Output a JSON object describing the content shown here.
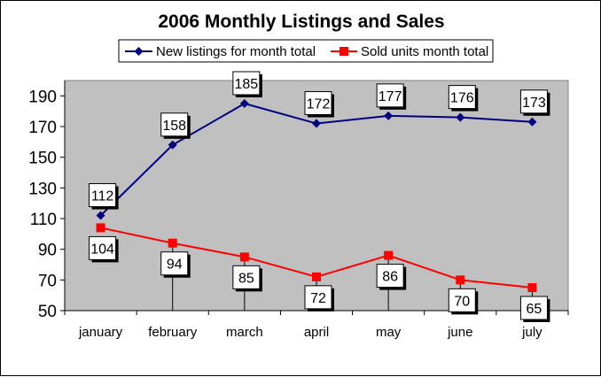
{
  "chart_data": {
    "type": "line",
    "title": "2006 Monthly Listings and Sales",
    "categories": [
      "january",
      "february",
      "march",
      "april",
      "may",
      "june",
      "july"
    ],
    "series": [
      {
        "name": "New listings for month total",
        "values": [
          112,
          158,
          185,
          172,
          177,
          176,
          173
        ],
        "color": "#000080",
        "marker": "diamond"
      },
      {
        "name": "Sold units month total",
        "values": [
          104,
          94,
          85,
          72,
          86,
          70,
          65
        ],
        "color": "#ff0000",
        "marker": "square"
      }
    ],
    "ylim": [
      50,
      200
    ],
    "yticks": [
      "50",
      "70",
      "90",
      "110",
      "130",
      "150",
      "170",
      "190"
    ],
    "xlabel": "",
    "ylabel": "",
    "legend_position": "top",
    "grid": false,
    "drop_lines": true,
    "plot_background": "#c0c0c0"
  }
}
